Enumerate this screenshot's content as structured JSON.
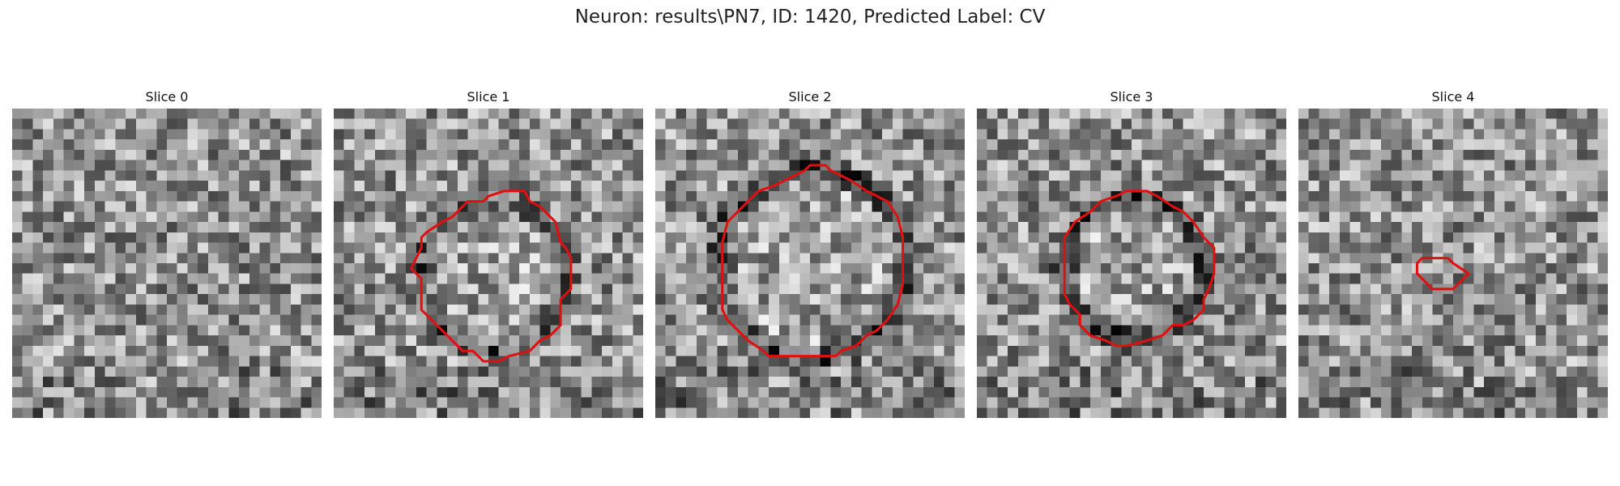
{
  "figure": {
    "title": "Neuron: results\\PN7, ID: 1420, Predicted Label: CV"
  },
  "panels": [
    {
      "title": "Slice 0",
      "grid_size": 30,
      "seed": 11,
      "contour": null,
      "contour_color": "#e01010"
    },
    {
      "title": "Slice 1",
      "grid_size": 30,
      "seed": 23,
      "contour": [
        [
          11.5,
          10.5
        ],
        [
          13.0,
          9.0
        ],
        [
          14.5,
          9.0
        ],
        [
          15.0,
          8.5
        ],
        [
          16.5,
          8.0
        ],
        [
          18.5,
          8.0
        ],
        [
          19.0,
          9.0
        ],
        [
          20.0,
          9.5
        ],
        [
          21.5,
          11.0
        ],
        [
          22.0,
          13.0
        ],
        [
          22.5,
          13.5
        ],
        [
          23.0,
          14.5
        ],
        [
          23.0,
          17.5
        ],
        [
          22.0,
          18.5
        ],
        [
          22.0,
          21.0
        ],
        [
          21.0,
          22.0
        ],
        [
          20.0,
          22.5
        ],
        [
          19.0,
          23.5
        ],
        [
          17.0,
          24.0
        ],
        [
          16.0,
          24.5
        ],
        [
          14.5,
          24.5
        ],
        [
          13.5,
          23.5
        ],
        [
          12.5,
          23.5
        ],
        [
          11.5,
          22.5
        ],
        [
          10.5,
          21.5
        ],
        [
          9.5,
          20.5
        ],
        [
          8.5,
          19.5
        ],
        [
          8.5,
          16.5
        ],
        [
          7.5,
          15.5
        ],
        [
          8.0,
          14.5
        ],
        [
          8.5,
          13.5
        ],
        [
          8.5,
          12.5
        ],
        [
          9.0,
          12.0
        ],
        [
          10.5,
          11.0
        ]
      ],
      "contour_color": "#e01010",
      "ring": {
        "cx": 15.5,
        "cy": 16.3,
        "r": 7.2,
        "darkness": 0.25
      }
    },
    {
      "title": "Slice 2",
      "grid_size": 30,
      "seed": 37,
      "contour": [
        [
          7.0,
          11.0
        ],
        [
          8.5,
          9.5
        ],
        [
          10.0,
          8.0
        ],
        [
          11.5,
          7.5
        ],
        [
          13.5,
          6.5
        ],
        [
          14.5,
          6.0
        ],
        [
          15.0,
          5.5
        ],
        [
          16.5,
          5.5
        ],
        [
          17.0,
          6.0
        ],
        [
          19.0,
          7.0
        ],
        [
          20.5,
          8.0
        ],
        [
          22.5,
          9.0
        ],
        [
          23.5,
          10.5
        ],
        [
          24.0,
          12.5
        ],
        [
          24.0,
          17.0
        ],
        [
          23.5,
          19.0
        ],
        [
          22.5,
          20.5
        ],
        [
          21.5,
          21.5
        ],
        [
          20.5,
          22.0
        ],
        [
          19.5,
          23.0
        ],
        [
          18.0,
          23.5
        ],
        [
          17.5,
          24.0
        ],
        [
          11.0,
          24.0
        ],
        [
          10.5,
          23.5
        ],
        [
          9.0,
          22.5
        ],
        [
          8.0,
          21.5
        ],
        [
          7.0,
          20.5
        ],
        [
          6.5,
          19.5
        ],
        [
          6.5,
          13.0
        ]
      ],
      "contour_color": "#e01010",
      "ring": {
        "cx": 15.2,
        "cy": 15.0,
        "r": 9.2,
        "darkness": 0.35
      }
    },
    {
      "title": "Slice 3",
      "grid_size": 30,
      "seed": 53,
      "contour": [
        [
          9.5,
          11.0
        ],
        [
          11.0,
          10.0
        ],
        [
          12.0,
          9.0
        ],
        [
          13.5,
          8.5
        ],
        [
          14.5,
          8.0
        ],
        [
          16.5,
          8.0
        ],
        [
          17.5,
          8.5
        ],
        [
          19.0,
          9.5
        ],
        [
          20.0,
          10.0
        ],
        [
          21.0,
          11.0
        ],
        [
          22.0,
          12.5
        ],
        [
          23.0,
          13.5
        ],
        [
          23.0,
          16.0
        ],
        [
          22.5,
          17.5
        ],
        [
          22.0,
          18.5
        ],
        [
          22.0,
          19.5
        ],
        [
          21.0,
          20.5
        ],
        [
          20.0,
          21.0
        ],
        [
          19.0,
          21.0
        ],
        [
          18.0,
          22.0
        ],
        [
          16.5,
          22.5
        ],
        [
          14.5,
          23.0
        ],
        [
          13.5,
          23.0
        ],
        [
          12.5,
          22.5
        ],
        [
          11.0,
          22.0
        ],
        [
          10.0,
          21.0
        ],
        [
          10.0,
          20.0
        ],
        [
          9.0,
          19.0
        ],
        [
          8.5,
          18.0
        ],
        [
          8.5,
          12.5
        ]
      ],
      "contour_color": "#e01010",
      "ring": {
        "cx": 15.3,
        "cy": 15.4,
        "r": 6.8,
        "darkness": 0.38
      }
    },
    {
      "title": "Slice 4",
      "grid_size": 30,
      "seed": 71,
      "contour": [
        [
          12.0,
          14.5
        ],
        [
          12.5,
          14.5
        ],
        [
          13.5,
          14.5
        ],
        [
          14.5,
          14.5
        ],
        [
          15.0,
          15.0
        ],
        [
          16.5,
          16.0
        ],
        [
          15.5,
          17.0
        ],
        [
          15.0,
          17.5
        ],
        [
          13.0,
          17.5
        ],
        [
          12.0,
          16.5
        ],
        [
          11.5,
          16.0
        ],
        [
          11.5,
          15.0
        ]
      ],
      "contour_color": "#e01010",
      "ring": null
    }
  ]
}
